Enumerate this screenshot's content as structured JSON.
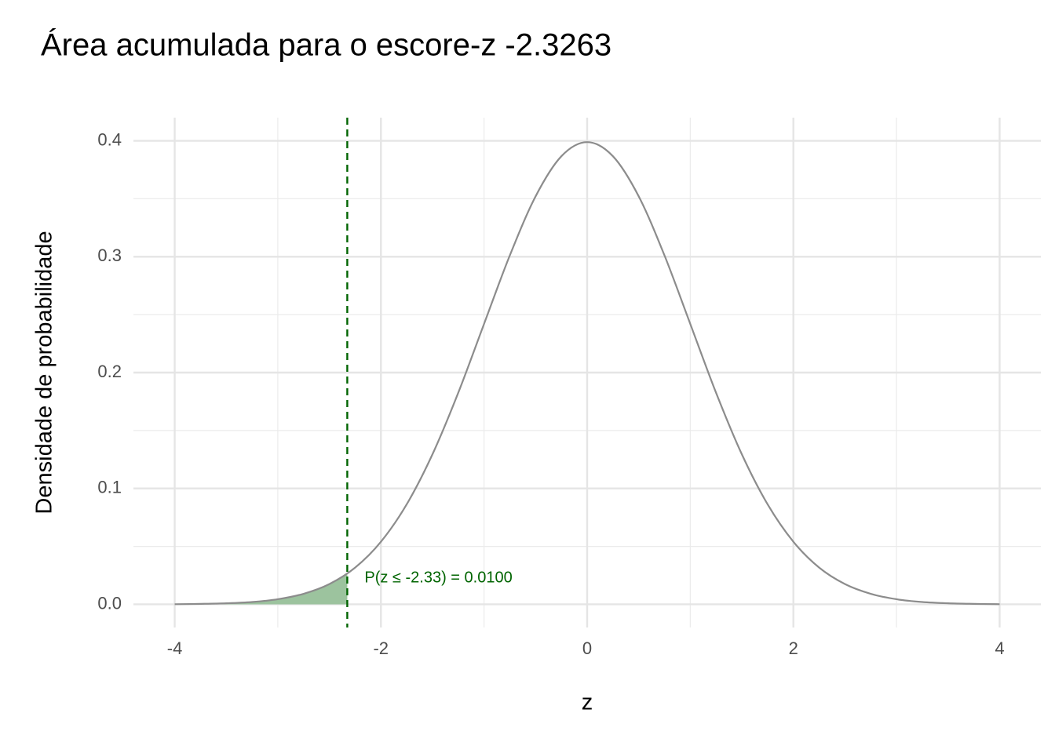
{
  "chart_data": {
    "type": "line",
    "title": "Área acumulada para o escore-z -2.3263",
    "x_label": "z",
    "y_label": "Densidade de probabilidade",
    "xlim": [
      -4.4,
      4.4
    ],
    "ylim": [
      -0.02,
      0.42
    ],
    "xticks": [
      -4,
      -2,
      0,
      2,
      4
    ],
    "yticks": [
      {
        "value": 0,
        "label": "0.0"
      },
      0.1,
      0.2,
      0.3,
      0.4
    ],
    "xminor": [
      -3,
      -1,
      1,
      3
    ],
    "yminor": [
      0.05,
      0.15,
      0.25,
      0.35
    ],
    "grid": true,
    "series": [
      {
        "color": "#8c8c8c",
        "x": [
          -4,
          -3.75,
          -3.5,
          -3.25,
          -3,
          -2.75,
          -2.5,
          -2.25,
          -2,
          -1.75,
          -1.5,
          -1.25,
          -1,
          -0.75,
          -0.5,
          -0.25,
          0,
          0.25,
          0.5,
          0.75,
          1,
          1.25,
          1.5,
          1.75,
          2,
          2.25,
          2.5,
          2.75,
          3,
          3.25,
          3.5,
          3.75,
          4
        ],
        "values": [
          0.0001,
          0.0004,
          0.0009,
          0.002,
          0.0044,
          0.0091,
          0.0175,
          0.0317,
          0.054,
          0.0863,
          0.1295,
          0.1826,
          0.242,
          0.3011,
          0.3521,
          0.3867,
          0.3989,
          0.3867,
          0.3521,
          0.3011,
          0.242,
          0.1826,
          0.1295,
          0.0863,
          0.054,
          0.0317,
          0.0175,
          0.0091,
          0.0044,
          0.002,
          0.0009,
          0.0004,
          0.0001
        ]
      },
      {
        "fill": "#9cc39e",
        "x": [
          -4,
          -3.75,
          -3.5,
          -3.25,
          -3,
          -2.75,
          -2.5,
          -2.3263
        ],
        "values": [
          0.0001,
          0.0004,
          0.0009,
          0.002,
          0.0044,
          0.0091,
          0.0175,
          0.0267
        ]
      }
    ],
    "vline": {
      "x": -2.3263,
      "color": "#006400"
    },
    "annotation": {
      "text": "P(z ≤ -2.33) = 0.0100",
      "color": "#006400"
    }
  }
}
